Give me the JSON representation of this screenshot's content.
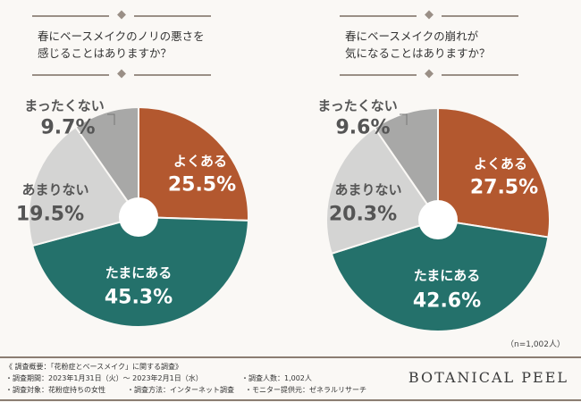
{
  "chart_data": [
    {
      "type": "pie",
      "title": "春にベースメイクのノリの悪さを\n感じることはありますか？",
      "categories": [
        "よくある",
        "たまにある",
        "あまりない",
        "まったくない"
      ],
      "values": [
        25.5,
        45.3,
        19.5,
        9.7
      ],
      "labels": [
        "25.5%",
        "45.3%",
        "19.5%",
        "9.7%"
      ],
      "start": "12 o'clock",
      "direction": "clockwise",
      "donut_hole": true
    },
    {
      "type": "pie",
      "title": "春にベースメイクの崩れが\n気になることはありますか？",
      "categories": [
        "よくある",
        "たまにある",
        "あまりない",
        "まったくない"
      ],
      "values": [
        27.5,
        42.6,
        20.3,
        9.6
      ],
      "labels": [
        "27.5%",
        "42.6%",
        "20.3%",
        "9.6%"
      ],
      "start": "12 o'clock",
      "direction": "clockwise",
      "donut_hole": true
    }
  ],
  "colors": {
    "よくある": "#b3582f",
    "たまにある": "#24716b",
    "あまりない": "#d4d4d3",
    "まったくない": "#a8a8a7"
  },
  "sample_note": "（n=1,002人）",
  "survey": {
    "heading": "《 調査概要：「花粉症とベースメイク」に関する調査》",
    "period": "・調査期間：2023年1月31日（火）～ 2023年2月1日（水）",
    "count": "・調査人数：1,002人",
    "target": "・調査対象：花粉症持ちの女性",
    "method": "・調査方法：インターネット調査",
    "provider": "・モニター提供元：ゼネラルリサーチ"
  },
  "brand": "BOTANICAL PEEL"
}
